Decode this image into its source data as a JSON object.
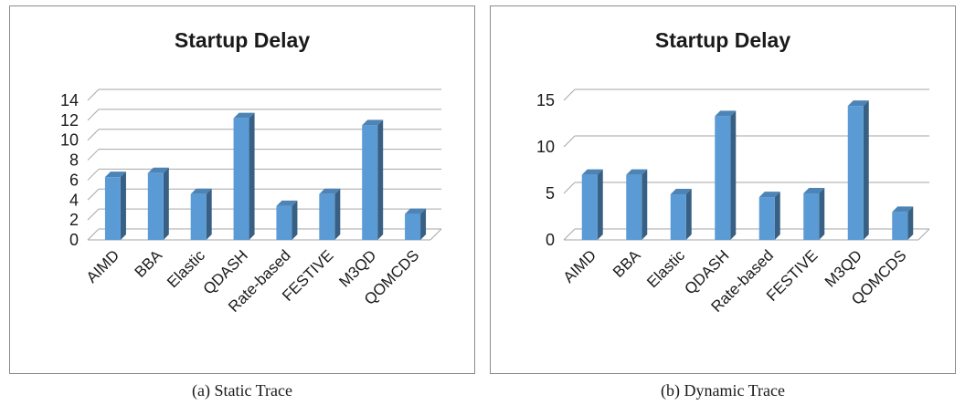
{
  "captions": [
    "(a) Static Trace",
    "(b) Dynamic Trace"
  ],
  "chart_data": [
    {
      "type": "bar",
      "title": "Startup Delay",
      "categories": [
        "AIMD",
        "BBA",
        "Elastic",
        "QDASH",
        "Rate-based",
        "FESTIVE",
        "M3QD",
        "QOMCDS"
      ],
      "values": [
        6.3,
        6.7,
        4.6,
        12.2,
        3.4,
        4.6,
        11.5,
        2.6
      ],
      "ylim": [
        0,
        14
      ],
      "yticks": [
        0,
        2,
        4,
        6,
        8,
        10,
        12,
        14
      ],
      "grid": true,
      "bar_color": "#5b9bd5"
    },
    {
      "type": "bar",
      "title": "Startup Delay",
      "categories": [
        "AIMD",
        "BBA",
        "Elastic",
        "QDASH",
        "Rate-based",
        "FESTIVE",
        "M3QD",
        "QOMCDS"
      ],
      "values": [
        7.0,
        7.0,
        4.9,
        13.3,
        4.6,
        5.0,
        14.4,
        3.0
      ],
      "ylim": [
        0,
        15
      ],
      "yticks": [
        0,
        5,
        10,
        15
      ],
      "grid": true,
      "bar_color": "#5b9bd5"
    }
  ]
}
